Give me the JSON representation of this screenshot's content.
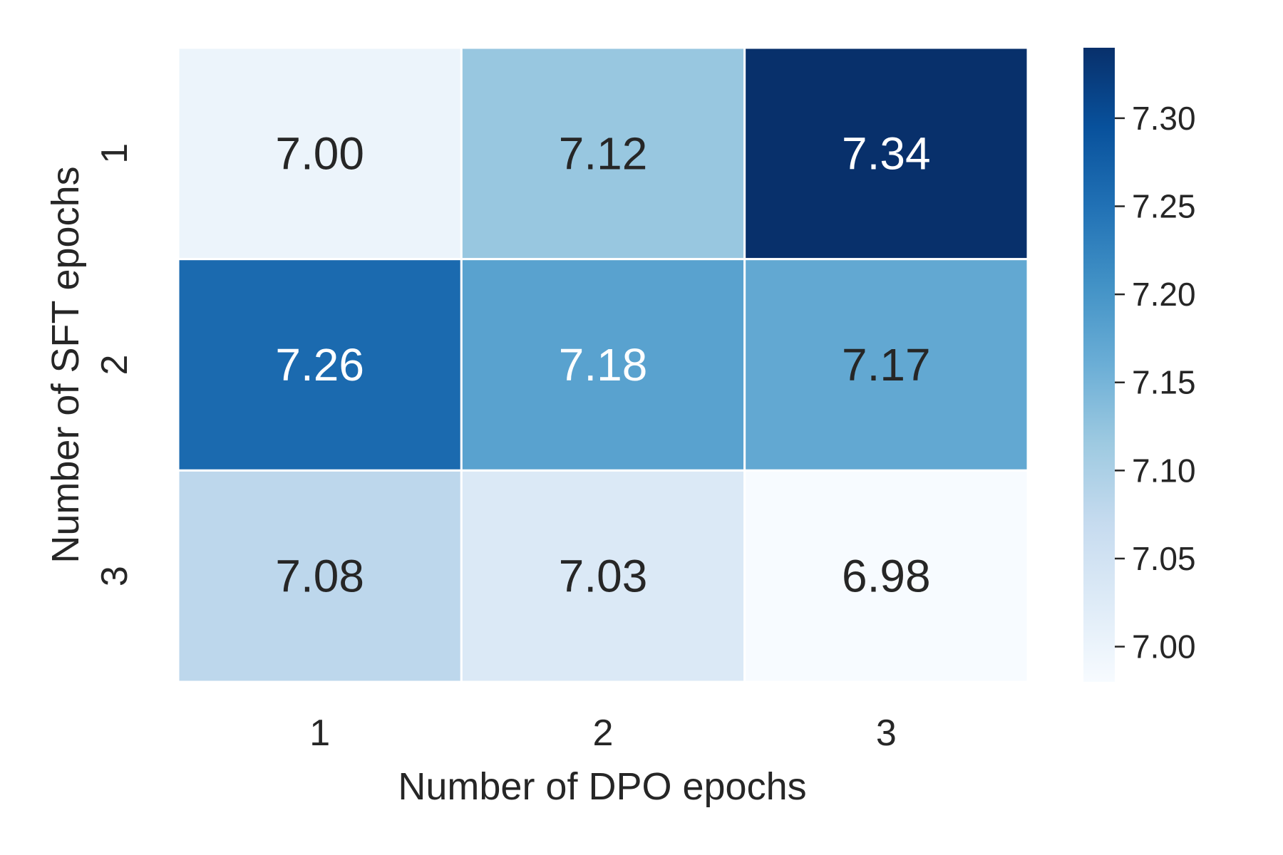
{
  "chart_data": {
    "type": "heatmap",
    "xlabel": "Number of DPO epochs",
    "ylabel": "Number of SFT epochs",
    "x_categories": [
      "1",
      "2",
      "3"
    ],
    "y_categories": [
      "1",
      "2",
      "3"
    ],
    "values": [
      [
        7.0,
        7.12,
        7.34
      ],
      [
        7.26,
        7.18,
        7.17
      ],
      [
        7.08,
        7.03,
        6.98
      ]
    ],
    "value_labels": [
      [
        "7.00",
        "7.12",
        "7.34"
      ],
      [
        "7.26",
        "7.18",
        "7.17"
      ],
      [
        "7.08",
        "7.03",
        "6.98"
      ]
    ],
    "colormap": "Blues",
    "colorbar": {
      "range": [
        6.98,
        7.34
      ],
      "ticks": [
        7.0,
        7.05,
        7.1,
        7.15,
        7.2,
        7.25,
        7.3
      ],
      "tick_labels": [
        "7.00",
        "7.05",
        "7.10",
        "7.15",
        "7.20",
        "7.25",
        "7.30"
      ]
    },
    "grid": false,
    "legend": "colorbar-right"
  }
}
